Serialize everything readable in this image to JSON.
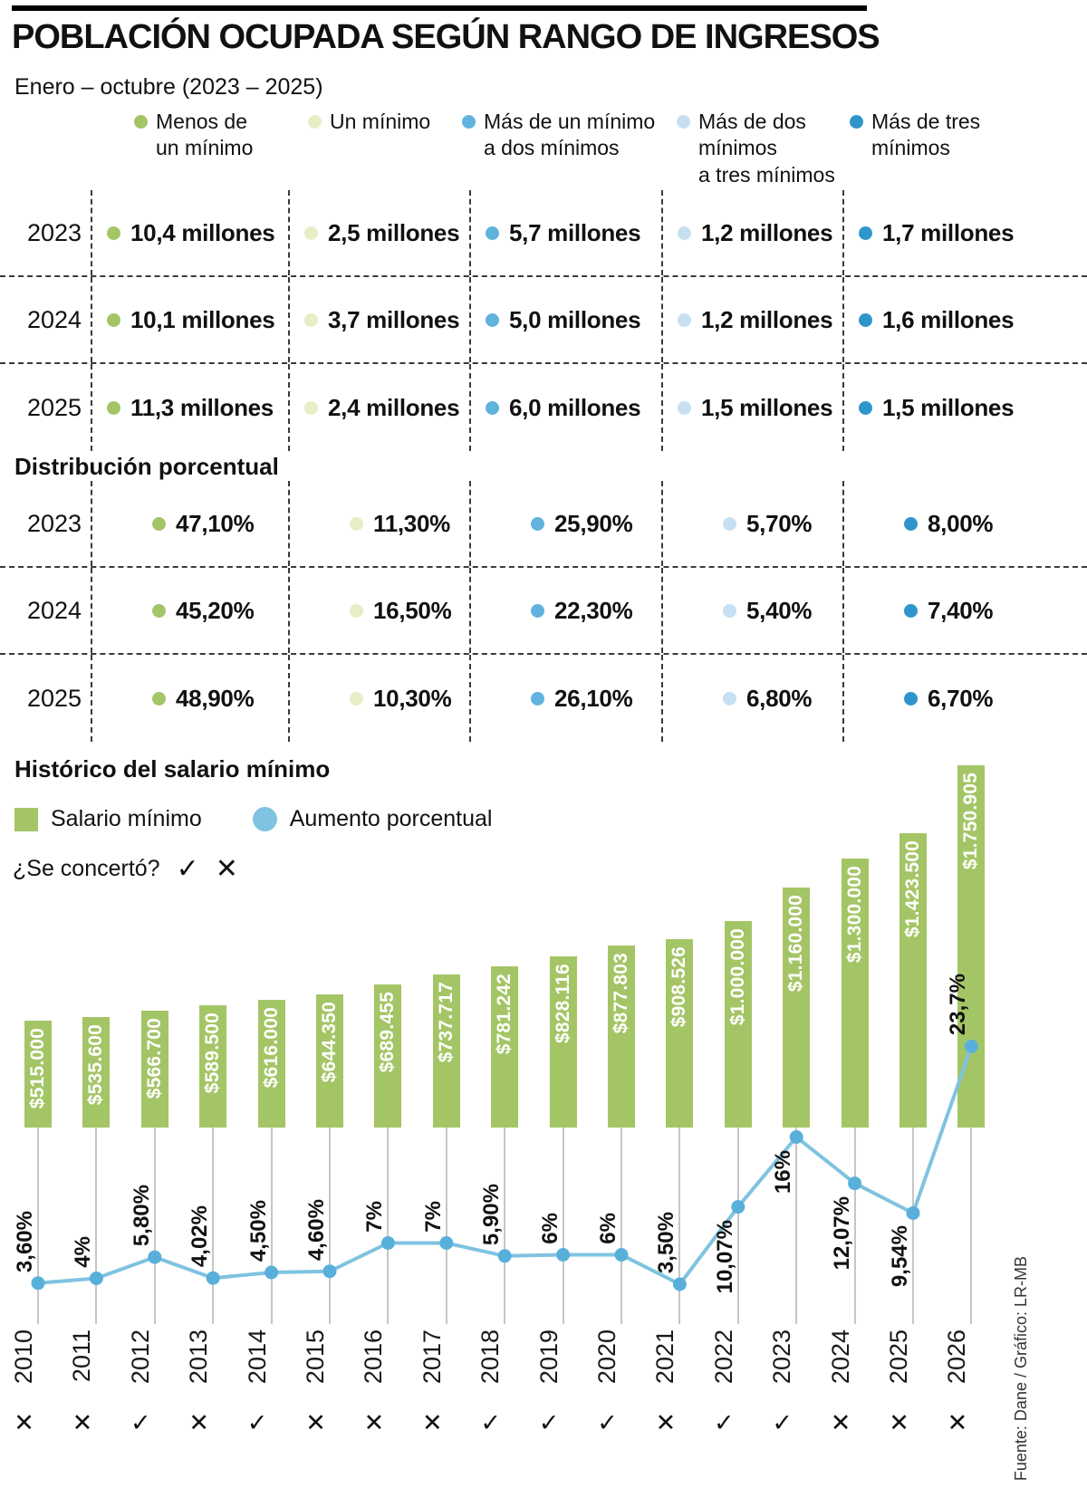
{
  "header": {
    "title": "POBLACIÓN OCUPADA SEGÚN RANGO DE INGRESOS",
    "subtitle": "Enero – octubre (2023 – 2025)"
  },
  "source": "Fuente: Dane / Gráfico: LR-MB",
  "categories": [
    {
      "label": "Menos de\nun mínimo",
      "color": "#a4c566"
    },
    {
      "label": "Un mínimo",
      "color": "#e8edc6"
    },
    {
      "label": "Más de un mínimo\na dos mínimos",
      "color": "#62b2de"
    },
    {
      "label": "Más de dos\nmínimos\na tres mínimos",
      "color": "#c6e0f2"
    },
    {
      "label": "Más de tres\nmínimos",
      "color": "#2f96cc"
    }
  ],
  "history": {
    "agreed_label": "¿Se concertó?",
    "check": "✓",
    "cross": "✕"
  },
  "chart_data": [
    {
      "type": "table",
      "columns": [
        "Menos de un mínimo",
        "Un mínimo",
        "Más de un mínimo a dos mínimos",
        "Más de dos mínimos a tres mínimos",
        "Más de tres mínimos"
      ],
      "rows": [
        {
          "year": "2023",
          "values": [
            "10,4 millones",
            "2,5 millones",
            "5,7 millones",
            "1,2 millones",
            "1,7 millones"
          ]
        },
        {
          "year": "2024",
          "values": [
            "10,1 millones",
            "3,7 millones",
            "5,0 millones",
            "1,2 millones",
            "1,6 millones"
          ]
        },
        {
          "year": "2025",
          "values": [
            "11,3 millones",
            "2,4 millones",
            "6,0 millones",
            "1,5 millones",
            "1,5 millones"
          ]
        }
      ]
    },
    {
      "type": "table",
      "title": "Distribución porcentual",
      "columns": [
        "Menos de un mínimo",
        "Un mínimo",
        "Más de un mínimo a dos mínimos",
        "Más de dos mínimos a tres mínimos",
        "Más de tres mínimos"
      ],
      "rows": [
        {
          "year": "2023",
          "values": [
            "47,10%",
            "11,30%",
            "25,90%",
            "5,70%",
            "8,00%"
          ]
        },
        {
          "year": "2024",
          "values": [
            "45,20%",
            "16,50%",
            "22,30%",
            "5,40%",
            "7,40%"
          ]
        },
        {
          "year": "2025",
          "values": [
            "48,90%",
            "10,30%",
            "26,10%",
            "6,80%",
            "6,70%"
          ]
        }
      ]
    },
    {
      "type": "bar",
      "title": "Histórico del salario mínimo",
      "categories": [
        "2010",
        "2011",
        "2012",
        "2013",
        "2014",
        "2015",
        "2016",
        "2017",
        "2018",
        "2019",
        "2020",
        "2021",
        "2022",
        "2023",
        "2024",
        "2025",
        "2026"
      ],
      "series": [
        {
          "name": "Salario mínimo",
          "type": "bar",
          "color": "#a4c566",
          "values": [
            515000,
            535600,
            566700,
            589500,
            616000,
            644350,
            689455,
            737717,
            781242,
            828116,
            877803,
            908526,
            1000000,
            1160000,
            1300000,
            1423500,
            1750905
          ],
          "labels": [
            "$515.000",
            "$535.600",
            "$566.700",
            "$589.500",
            "$616.000",
            "$644.350",
            "$689.455",
            "$737.717",
            "$781.242",
            "$828.116",
            "$877.803",
            "$908.526",
            "$1.000.000",
            "$1.160.000",
            "$1.300.000",
            "$1.423.500",
            "$1.750.905"
          ]
        },
        {
          "name": "Aumento porcentual",
          "type": "line",
          "color": "#7fc3e0",
          "values": [
            3.6,
            4,
            5.8,
            4.02,
            4.5,
            4.6,
            7,
            7,
            5.9,
            6,
            6,
            3.5,
            10.07,
            16,
            12.07,
            9.54,
            23.7
          ],
          "labels": [
            "3,60%",
            "4%",
            "5,80%",
            "4,02%",
            "4,50%",
            "4,60%",
            "7%",
            "7%",
            "5,90%",
            "6%",
            "6%",
            "3,50%",
            "10,07%",
            "16%",
            "12,07%",
            "9,54%",
            "23,7%"
          ]
        }
      ],
      "agreed": [
        false,
        false,
        true,
        false,
        true,
        false,
        false,
        false,
        true,
        true,
        true,
        false,
        true,
        true,
        false,
        false,
        false
      ],
      "ylim_bar": [
        0,
        1750905
      ],
      "legend_position": "top-left",
      "grid": false
    }
  ]
}
